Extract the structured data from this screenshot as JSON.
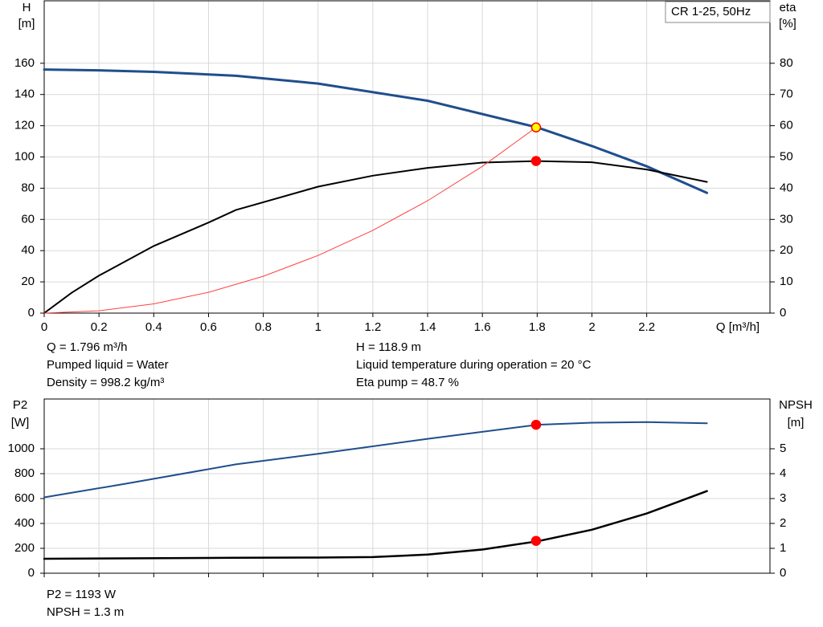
{
  "chart_data": [
    {
      "type": "line",
      "legend_box": "CR 1-25, 50Hz",
      "ylabel": "H",
      "yunit": "[m]",
      "y2label": "eta",
      "y2unit": "[%]",
      "xlabel": "Q [m³/h]",
      "xlim": [
        0,
        2.65
      ],
      "xticks": [
        0,
        0.2,
        0.4,
        0.6,
        0.8,
        1.0,
        1.2,
        1.4,
        1.6,
        1.8,
        2.0,
        2.2
      ],
      "ylim": [
        0,
        200
      ],
      "yticks": [
        0,
        20,
        40,
        60,
        80,
        100,
        120,
        140,
        160
      ],
      "y2lim": [
        0,
        100
      ],
      "y2ticks": [
        0,
        10,
        20,
        30,
        40,
        50,
        60,
        70,
        80
      ],
      "grid": true,
      "series": [
        {
          "color": "#1f4e8c",
          "axis": "y",
          "width": 3,
          "x": [
            0,
            0.2,
            0.4,
            0.7,
            1.0,
            1.4,
            1.8,
            2.0,
            2.2,
            2.42
          ],
          "values": [
            156,
            155.5,
            154.5,
            152,
            147,
            136,
            118.9,
            107,
            94,
            77
          ]
        },
        {
          "color": "#000000",
          "axis": "y2",
          "width": 2,
          "x": [
            0,
            0.1,
            0.2,
            0.4,
            0.6,
            0.7,
            1.0,
            1.2,
            1.4,
            1.6,
            1.8,
            2.0,
            2.2,
            2.42
          ],
          "values": [
            0,
            6.5,
            12,
            21.5,
            29,
            33,
            40.5,
            44,
            46.5,
            48.2,
            48.7,
            48.3,
            46,
            42
          ]
        },
        {
          "color": "#ff4040",
          "axis": "y",
          "width": 1,
          "x": [
            0,
            0.2,
            0.4,
            0.6,
            0.8,
            1.0,
            1.2,
            1.4,
            1.6,
            1.796
          ],
          "values": [
            0,
            1.5,
            5.9,
            13.3,
            23.6,
            36.9,
            53,
            72,
            94,
            118.9
          ]
        }
      ],
      "points": [
        {
          "x": 1.796,
          "y": 118.9,
          "axis": "y",
          "color": "#ffff00",
          "edgecolor": "#ff0000"
        },
        {
          "x": 1.796,
          "y": 48.7,
          "axis": "y2",
          "color": "#ff0000",
          "edgecolor": "#ff0000"
        }
      ],
      "notes_left": [
        "Q = 1.796 m³/h",
        "Pumped liquid = Water",
        "Density = 998.2 kg/m³"
      ],
      "notes_right": [
        "H = 118.9 m",
        "Liquid temperature during operation = 20 °C",
        "Eta pump = 48.7 %"
      ]
    },
    {
      "type": "line",
      "ylabel": "P2",
      "yunit": "[W]",
      "y2label": "NPSH",
      "y2unit": "[m]",
      "xlim": [
        0,
        2.65
      ],
      "ylim": [
        0,
        1400
      ],
      "yticks": [
        0,
        200,
        400,
        600,
        800,
        1000
      ],
      "y2lim": [
        0,
        7
      ],
      "y2ticks": [
        0,
        1,
        2,
        3,
        4,
        5
      ],
      "grid": true,
      "series": [
        {
          "color": "#1f4e8c",
          "axis": "y",
          "width": 2,
          "x": [
            0,
            0.3,
            0.7,
            1.0,
            1.4,
            1.8,
            2.0,
            2.2,
            2.42
          ],
          "values": [
            610,
            720,
            875,
            960,
            1080,
            1193,
            1210,
            1215,
            1205
          ]
        },
        {
          "color": "#000000",
          "axis": "y2",
          "width": 2.5,
          "x": [
            0,
            0.7,
            1.0,
            1.2,
            1.4,
            1.6,
            1.8,
            2.0,
            2.2,
            2.42
          ],
          "values": [
            0.58,
            0.62,
            0.63,
            0.65,
            0.75,
            0.95,
            1.28,
            1.75,
            2.4,
            3.3
          ]
        }
      ],
      "points": [
        {
          "x": 1.796,
          "y": 1193,
          "axis": "y",
          "color": "#ff0000",
          "edgecolor": "#ff0000"
        },
        {
          "x": 1.796,
          "y": 1.3,
          "axis": "y2",
          "color": "#ff0000",
          "edgecolor": "#ff0000"
        }
      ],
      "notes_left": [
        "P2 = 1193 W",
        "NPSH = 1.3 m"
      ]
    }
  ]
}
